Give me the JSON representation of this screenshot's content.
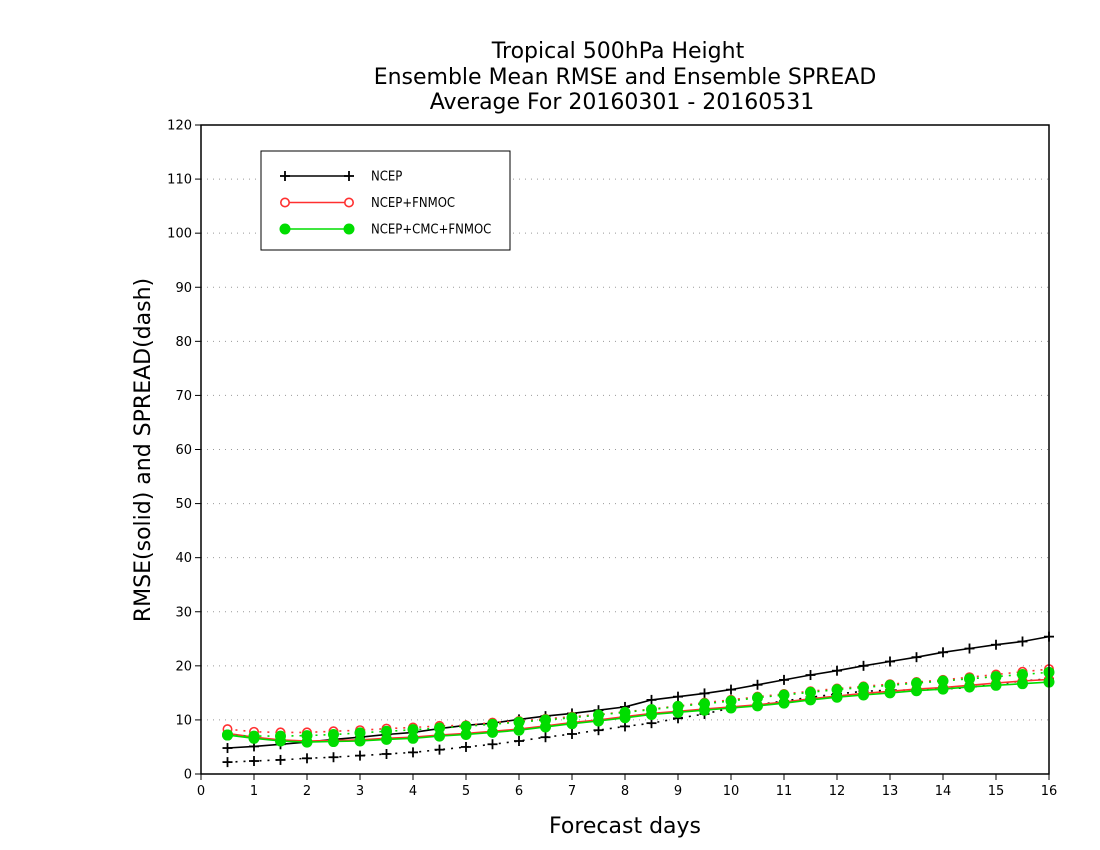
{
  "chart_data": {
    "type": "line",
    "title": [
      "Tropical 500hPa Height",
      "Ensemble Mean RMSE and Ensemble SPREAD",
      "Average For 20160301 - 20160531"
    ],
    "xlabel": "Forecast days",
    "ylabel": "RMSE(solid) and SPREAD(dash)",
    "xlim": [
      0,
      16
    ],
    "ylim": [
      0,
      120
    ],
    "xticks": [
      0,
      1,
      2,
      3,
      4,
      5,
      6,
      7,
      8,
      9,
      10,
      11,
      12,
      13,
      14,
      15,
      16
    ],
    "yticks": [
      0,
      10,
      20,
      30,
      40,
      50,
      60,
      70,
      80,
      90,
      100,
      110,
      120
    ],
    "grid": "horizontal-dotted",
    "legend_position": "top-left",
    "x": [
      0.5,
      1,
      1.5,
      2,
      2.5,
      3,
      3.5,
      4,
      4.5,
      5,
      5.5,
      6,
      6.5,
      7,
      7.5,
      8,
      8.5,
      9,
      9.5,
      10,
      10.5,
      11,
      11.5,
      12,
      12.5,
      13,
      13.5,
      14,
      14.5,
      15,
      15.5,
      16
    ],
    "series": [
      {
        "name": "NCEP",
        "color": "#000000",
        "marker": "plus",
        "rmse": [
          4.8,
          5.1,
          5.5,
          5.9,
          6.4,
          6.8,
          7.3,
          7.7,
          8.4,
          9.0,
          9.4,
          10.1,
          10.7,
          11.2,
          11.8,
          12.4,
          13.7,
          14.3,
          14.9,
          15.6,
          16.5,
          17.4,
          18.3,
          19.1,
          20.0,
          20.8,
          21.6,
          22.5,
          23.2,
          23.9,
          24.5,
          25.4
        ],
        "spread": [
          2.2,
          2.4,
          2.6,
          2.9,
          3.1,
          3.4,
          3.7,
          4.0,
          4.5,
          5.0,
          5.5,
          6.1,
          6.8,
          7.4,
          8.1,
          8.8,
          9.4,
          10.3,
          11.1,
          12.2,
          12.8,
          13.5,
          14.2,
          14.8,
          15.3,
          15.5,
          15.5,
          15.7,
          16.0,
          16.6,
          17.2,
          17.6
        ]
      },
      {
        "name": "NCEP+FNMOC",
        "color": "#ff3030",
        "marker": "open-circle",
        "rmse": [
          7.5,
          6.8,
          6.3,
          6.1,
          6.2,
          6.3,
          6.6,
          6.8,
          7.2,
          7.5,
          7.9,
          8.3,
          8.9,
          9.5,
          10.0,
          10.6,
          11.2,
          11.6,
          12.0,
          12.4,
          12.8,
          13.3,
          13.9,
          14.4,
          14.9,
          15.3,
          15.7,
          16.0,
          16.4,
          16.8,
          17.2,
          17.5
        ],
        "spread": [
          8.3,
          7.8,
          7.7,
          7.7,
          7.9,
          8.1,
          8.4,
          8.6,
          8.9,
          9.0,
          9.5,
          9.8,
          10.2,
          10.6,
          11.0,
          11.5,
          12.0,
          12.6,
          13.2,
          13.7,
          14.3,
          14.8,
          15.3,
          15.8,
          16.2,
          16.6,
          17.0,
          17.4,
          17.9,
          18.4,
          18.9,
          19.4
        ]
      },
      {
        "name": "NCEP+CMC+FNMOC",
        "color": "#00dd00",
        "marker": "filled-circle",
        "rmse": [
          7.2,
          6.6,
          6.1,
          5.9,
          6.0,
          6.1,
          6.4,
          6.6,
          7.0,
          7.3,
          7.7,
          8.1,
          8.7,
          9.3,
          9.8,
          10.4,
          11.0,
          11.4,
          11.8,
          12.2,
          12.6,
          13.1,
          13.7,
          14.2,
          14.6,
          15.0,
          15.4,
          15.7,
          16.1,
          16.4,
          16.7,
          17.0
        ],
        "spread": [
          7.2,
          7.0,
          7.0,
          7.1,
          7.3,
          7.6,
          7.9,
          8.2,
          8.5,
          8.8,
          9.2,
          9.6,
          10.0,
          10.4,
          10.9,
          11.4,
          11.9,
          12.5,
          13.0,
          13.5,
          14.1,
          14.6,
          15.1,
          15.6,
          16.0,
          16.4,
          16.8,
          17.2,
          17.6,
          18.0,
          18.4,
          18.8
        ]
      }
    ]
  }
}
